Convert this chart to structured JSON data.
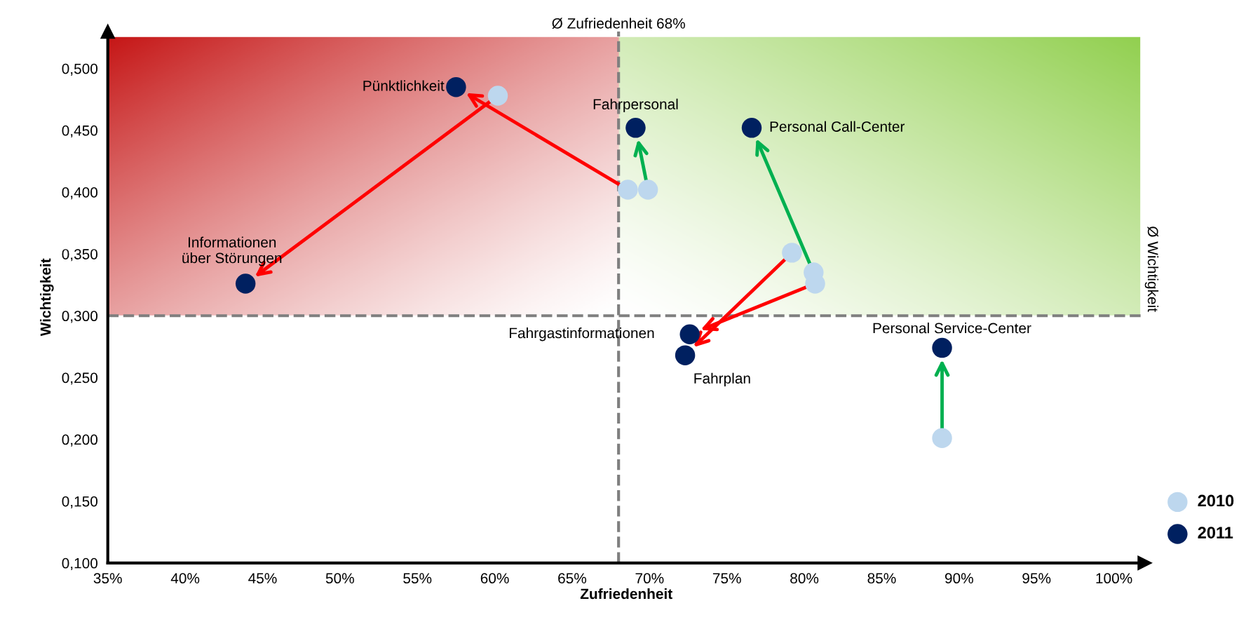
{
  "chart_data": {
    "type": "scatter",
    "xlabel": "Zufriedenheit",
    "ylabel": "Wichtigkeit",
    "xlim": [
      35,
      102
    ],
    "ylim": [
      0.1,
      0.53
    ],
    "xticks": [
      {
        "value": 35,
        "label": "35%"
      },
      {
        "value": 40,
        "label": "40%"
      },
      {
        "value": 45,
        "label": "45%"
      },
      {
        "value": 50,
        "label": "50%"
      },
      {
        "value": 55,
        "label": "55%"
      },
      {
        "value": 60,
        "label": "60%"
      },
      {
        "value": 65,
        "label": "65%"
      },
      {
        "value": 70,
        "label": "70%"
      },
      {
        "value": 75,
        "label": "75%"
      },
      {
        "value": 80,
        "label": "80%"
      },
      {
        "value": 85,
        "label": "85%"
      },
      {
        "value": 90,
        "label": "90%"
      },
      {
        "value": 95,
        "label": "95%"
      },
      {
        "value": 100,
        "label": "100%"
      }
    ],
    "yticks": [
      {
        "value": 0.1,
        "label": "0,100"
      },
      {
        "value": 0.15,
        "label": "0,150"
      },
      {
        "value": 0.2,
        "label": "0,200"
      },
      {
        "value": 0.25,
        "label": "0,250"
      },
      {
        "value": 0.3,
        "label": "0,300"
      },
      {
        "value": 0.35,
        "label": "0,350"
      },
      {
        "value": 0.4,
        "label": "0,400"
      },
      {
        "value": 0.45,
        "label": "0,450"
      },
      {
        "value": 0.5,
        "label": "0,500"
      }
    ],
    "series": [
      {
        "name": "2010",
        "color": "#bdd7ee",
        "x": [
          68.6,
          60.2,
          69.9,
          80.6,
          80.7,
          79.2,
          88.9
        ],
        "values": [
          0.402,
          0.478,
          0.402,
          0.335,
          0.326,
          0.351,
          0.201
        ]
      },
      {
        "name": "2011",
        "color": "#002060",
        "x": [
          57.5,
          43.9,
          69.1,
          76.6,
          72.6,
          72.3,
          88.9
        ],
        "values": [
          0.485,
          0.326,
          0.452,
          0.452,
          0.285,
          0.268,
          0.274
        ]
      }
    ],
    "annotations": [
      {
        "text": "Pünktlichkeit",
        "x": 57.5,
        "y": 0.485
      },
      {
        "text": "Informationen\nüber Störungen",
        "x": 43.9,
        "y": 0.326
      },
      {
        "text": "Fahrpersonal",
        "x": 69.1,
        "y": 0.452
      },
      {
        "text": "Personal Call-Center",
        "x": 76.6,
        "y": 0.452
      },
      {
        "text": "Fahrgastinformationen",
        "x": 72.6,
        "y": 0.285
      },
      {
        "text": "Fahrplan",
        "x": 72.3,
        "y": 0.268
      },
      {
        "text": "Personal Service-Center",
        "x": 88.9,
        "y": 0.274
      }
    ],
    "ref_lines": [
      {
        "axis": "x",
        "value": 68,
        "label": "Ø Zufriedenheit 68%",
        "color": "#7f7f7f",
        "line_style": "dashed"
      },
      {
        "axis": "y",
        "value": 0.3,
        "label": "Ø Wichtigkeit",
        "color": "#7f7f7f",
        "line_style": "dashed"
      }
    ],
    "bands": [
      {
        "axis": "y",
        "from": 0.3,
        "to": 0.525
      }
    ],
    "marker": "circle",
    "grid": false,
    "legend": "bottom right"
  }
}
